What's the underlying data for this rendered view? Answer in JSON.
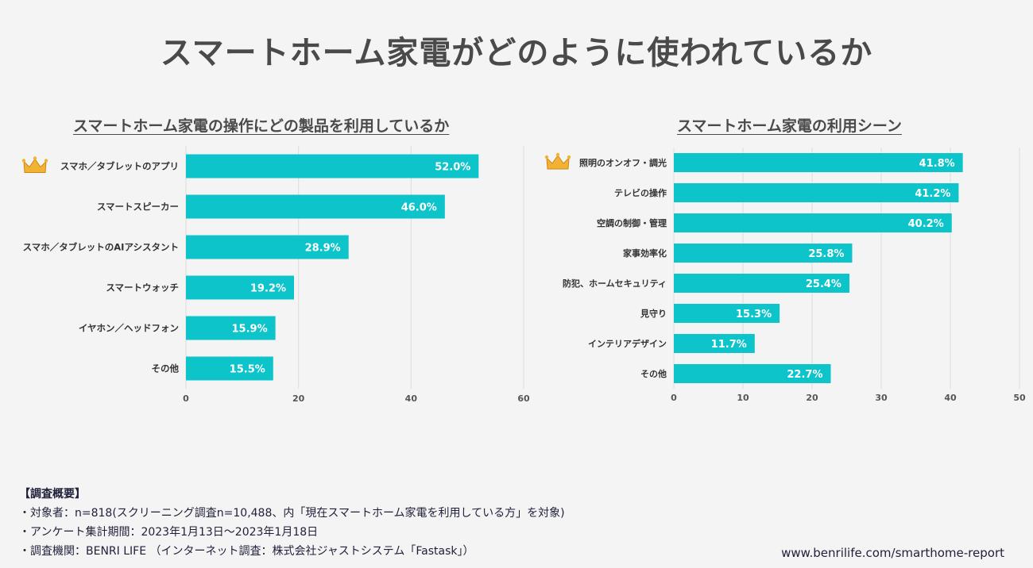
{
  "title": "スマートホーム家電がどのように使われているか",
  "chart_data": [
    {
      "type": "bar",
      "orientation": "horizontal",
      "title": "スマートホーム家電の操作にどの製品を利用しているか",
      "categories": [
        "スマホ／タブレットのアプリ",
        "スマートスピーカー",
        "スマホ／タブレットのAIアシスタント",
        "スマートウォッチ",
        "イヤホン／ヘッドフォン",
        "その他"
      ],
      "values": [
        52.0,
        46.0,
        28.9,
        19.2,
        15.9,
        15.5
      ],
      "value_labels": [
        "52.0%",
        "46.0%",
        "28.9%",
        "19.2%",
        "15.9%",
        "15.5%"
      ],
      "xlim": [
        0,
        60
      ],
      "xticks": [
        "0",
        "20",
        "40",
        "60"
      ],
      "xtick_values": [
        0,
        20,
        40,
        60
      ],
      "grid": true,
      "bar_color": "#0cc4c9",
      "top_marker": "crown-icon"
    },
    {
      "type": "bar",
      "orientation": "horizontal",
      "title": "スマートホーム家電の利用シーン",
      "categories": [
        "照明のオンオフ・調光",
        "テレビの操作",
        "空調の制御・管理",
        "家事効率化",
        "防犯、ホームセキュリティ",
        "見守り",
        "インテリアデザイン",
        "その他"
      ],
      "values": [
        41.8,
        41.2,
        40.2,
        25.8,
        25.4,
        15.3,
        11.7,
        22.7
      ],
      "value_labels": [
        "41.8%",
        "41.2%",
        "40.2%",
        "25.8%",
        "25.4%",
        "15.3%",
        "11.7%",
        "22.7%"
      ],
      "xlim": [
        0,
        50
      ],
      "xticks": [
        "0",
        "10",
        "20",
        "30",
        "40",
        "50"
      ],
      "xtick_values": [
        0,
        10,
        20,
        30,
        40,
        50
      ],
      "grid": true,
      "bar_color": "#0cc4c9",
      "top_marker": "crown-icon"
    }
  ],
  "survey": {
    "heading": "【調査概要】",
    "lines": [
      "・対象者：n=818(スクリーニング調査n=10,488、内「現在スマートホーム家電を利用している方」を対象)",
      "・アンケート集計期間：2023年1月13日〜2023年1月18日",
      "・調査機関：BENRI LIFE （インターネット調査：株式会社ジャストシステム「Fastask」）"
    ]
  },
  "source": "www.benrilife.com/smarthome-report"
}
